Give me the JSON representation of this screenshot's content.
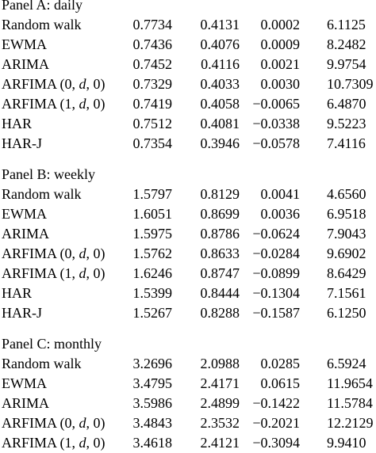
{
  "panels": [
    {
      "title": "Panel A: daily",
      "rows": [
        {
          "model": "Random walk",
          "v1": "0.7734",
          "v2": "0.4131",
          "v3": "0.0002",
          "v4": "6.1125"
        },
        {
          "model": "EWMA",
          "v1": "0.7436",
          "v2": "0.4076",
          "v3": "0.0009",
          "v4": "8.2482"
        },
        {
          "model": "ARIMA",
          "v1": "0.7452",
          "v2": "0.4116",
          "v3": "0.0021",
          "v4": "9.9754"
        },
        {
          "model": "ARFIMA (0, d, 0)",
          "v1": "0.7329",
          "v2": "0.4033",
          "v3": "0.0030",
          "v4": "10.7309"
        },
        {
          "model": "ARFIMA (1, d, 0)",
          "v1": "0.7419",
          "v2": "0.4058",
          "v3": "−0.0065",
          "v4": "6.4870"
        },
        {
          "model": "HAR",
          "v1": "0.7512",
          "v2": "0.4081",
          "v3": "−0.0338",
          "v4": "9.5223"
        },
        {
          "model": "HAR-J",
          "v1": "0.7354",
          "v2": "0.3946",
          "v3": "−0.0578",
          "v4": "7.4116"
        }
      ]
    },
    {
      "title": "Panel B: weekly",
      "rows": [
        {
          "model": "Random walk",
          "v1": "1.5797",
          "v2": "0.8129",
          "v3": "0.0041",
          "v4": "4.6560"
        },
        {
          "model": "EWMA",
          "v1": "1.6051",
          "v2": "0.8699",
          "v3": "0.0036",
          "v4": "6.9518"
        },
        {
          "model": "ARIMA",
          "v1": "1.5975",
          "v2": "0.8786",
          "v3": "−0.0624",
          "v4": "7.9043"
        },
        {
          "model": "ARFIMA (0, d, 0)",
          "v1": "1.5762",
          "v2": "0.8633",
          "v3": "−0.0284",
          "v4": "9.6902"
        },
        {
          "model": "ARFIMA (1, d, 0)",
          "v1": "1.6246",
          "v2": "0.8747",
          "v3": "−0.0899",
          "v4": "8.6429"
        },
        {
          "model": "HAR",
          "v1": "1.5399",
          "v2": "0.8444",
          "v3": "−0.1304",
          "v4": "7.1561"
        },
        {
          "model": "HAR-J",
          "v1": "1.5267",
          "v2": "0.8288",
          "v3": "−0.1587",
          "v4": "6.1250"
        }
      ]
    },
    {
      "title": "Panel C: monthly",
      "rows": [
        {
          "model": "Random walk",
          "v1": "3.2696",
          "v2": "2.0988",
          "v3": "0.0285",
          "v4": "6.5924"
        },
        {
          "model": "EWMA",
          "v1": "3.4795",
          "v2": "2.4171",
          "v3": "0.0615",
          "v4": "11.9654"
        },
        {
          "model": "ARIMA",
          "v1": "3.5986",
          "v2": "2.4899",
          "v3": "−0.1422",
          "v4": "11.5784"
        },
        {
          "model": "ARFIMA (0, d, 0)",
          "v1": "3.4843",
          "v2": "2.3532",
          "v3": "−0.2021",
          "v4": "12.2129"
        },
        {
          "model": "ARFIMA (1, d, 0)",
          "v1": "3.4618",
          "v2": "2.4121",
          "v3": "−0.3094",
          "v4": "9.9410"
        }
      ]
    }
  ]
}
